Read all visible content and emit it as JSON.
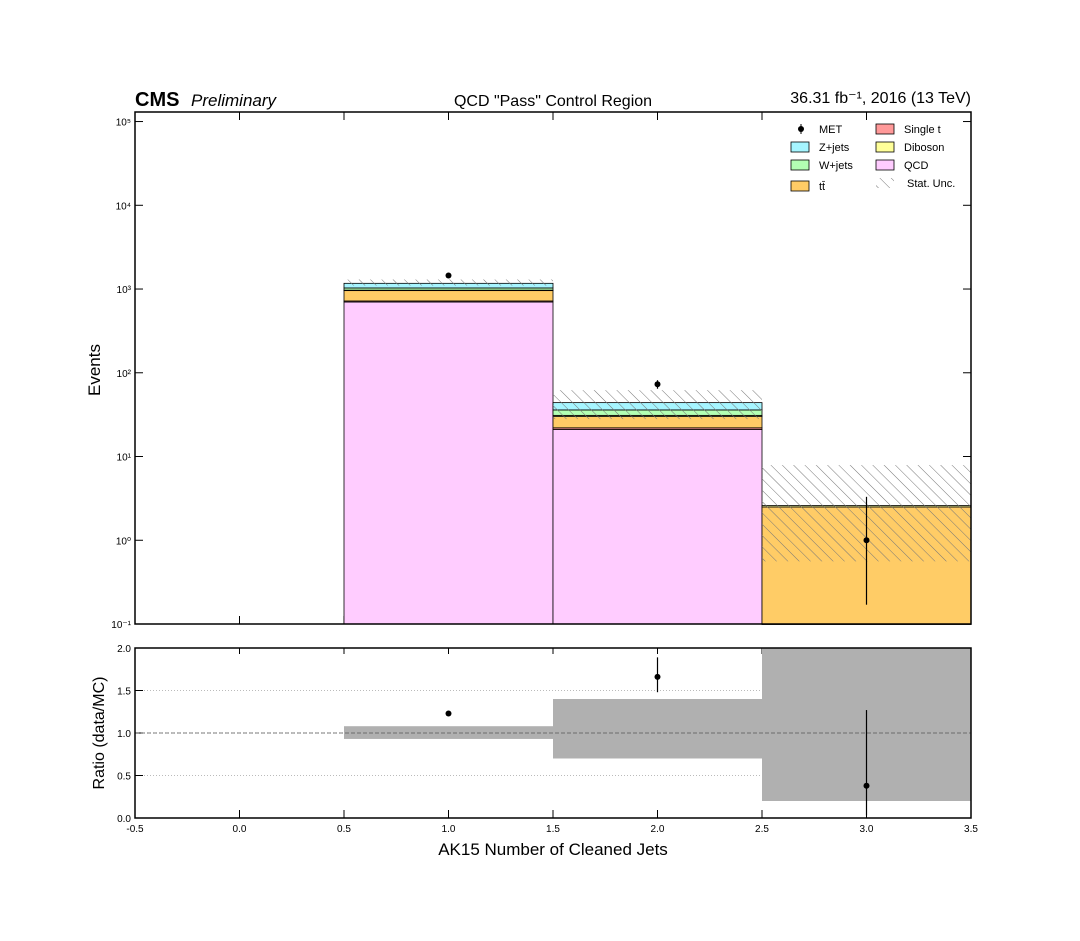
{
  "chart_data": {
    "type": "histogram",
    "cms_label": "CMS",
    "cms_extra": "Preliminary",
    "title": "QCD \"Pass\" Control Region",
    "lumi_label": "36.31 fb⁻¹, 2016 (13 TeV)",
    "x_label": "AK15 Number of Cleaned Jets",
    "y_label": "Events",
    "bins": [
      -0.5,
      0.5,
      1.5,
      2.5,
      3.5
    ],
    "xlim": [
      -0.5,
      3.5
    ],
    "xticks": [
      -0.5,
      {
        "value": 0,
        "label": "0.0"
      },
      0.5,
      {
        "value": 1,
        "label": "1.0"
      },
      1.5,
      {
        "value": 2,
        "label": "2.0"
      },
      2.5,
      {
        "value": 3,
        "label": "3.0"
      },
      3.5
    ],
    "log_y": true,
    "ylim": [
      0.1,
      130000
    ],
    "yticks": [
      {
        "value": 0.1,
        "label": "10⁻¹"
      },
      {
        "value": 1,
        "label": "10⁰"
      },
      {
        "value": 10,
        "label": "10¹"
      },
      {
        "value": 100,
        "label": "10²"
      },
      {
        "value": 1000,
        "label": "10³"
      },
      {
        "value": 10000,
        "label": "10⁴"
      },
      {
        "value": 100000,
        "label": "10⁵"
      }
    ],
    "legend_loc": "upper right",
    "series": [
      {
        "name": "QCD",
        "color": "#ffccff",
        "values": [
          null,
          700,
          21,
          0
        ]
      },
      {
        "name": "Single t",
        "color": "#ff9999",
        "values": [
          null,
          20,
          1,
          0.1
        ]
      },
      {
        "name": "tt̄",
        "color": "#ffcc66",
        "values": [
          null,
          240,
          8,
          2.4
        ]
      },
      {
        "name": "Diboson",
        "color": "#ffff99",
        "values": [
          null,
          10,
          1,
          0.1
        ]
      },
      {
        "name": "W+jets",
        "color": "#b3ffb3",
        "values": [
          null,
          60,
          5,
          0
        ]
      },
      {
        "name": "Z+jets",
        "color": "#a6f5ff",
        "values": [
          null,
          140,
          8,
          0
        ]
      }
    ],
    "data": {
      "name": "MET",
      "color": "#000000",
      "values": [
        null,
        1450,
        73,
        1
      ],
      "errors_up": [
        null,
        38,
        8.5,
        2.3
      ],
      "errors_down": [
        null,
        38,
        8.5,
        0.83
      ]
    },
    "stat_unc": {
      "name": "Stat. Unc.",
      "low": [
        null,
        1100,
        28,
        0.56
      ],
      "high": [
        null,
        1300,
        62,
        7.9
      ]
    },
    "ratio": {
      "y_label": "Ratio (data/MC)",
      "ylim": [
        0,
        2
      ],
      "yticks": [
        {
          "value": 0,
          "label": "0.0"
        },
        {
          "value": 0.5,
          "label": "0.5"
        },
        {
          "value": 1,
          "label": "1.0"
        },
        {
          "value": 1.5,
          "label": "1.5"
        },
        {
          "value": 2,
          "label": "2.0"
        }
      ],
      "grid": true,
      "reference_line": 1,
      "band_color": "#b0b0b0",
      "values": [
        null,
        1.23,
        1.66,
        0.38
      ],
      "errors_up": [
        null,
        0,
        0.23,
        0.89
      ],
      "errors_down": [
        null,
        0,
        0.18,
        0.35
      ],
      "band_low": [
        null,
        0.93,
        0.7,
        0.2
      ],
      "band_high": [
        null,
        1.08,
        1.4,
        2.0
      ]
    }
  }
}
